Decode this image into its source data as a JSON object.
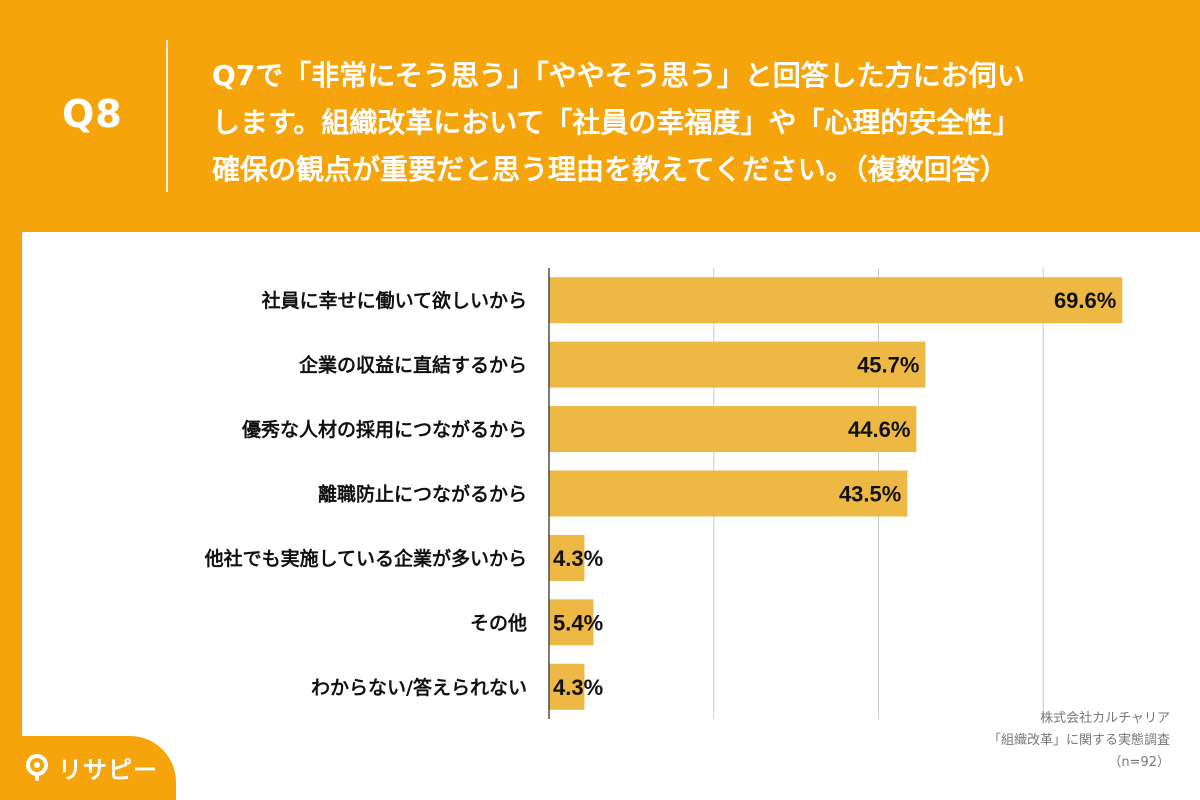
{
  "header": {
    "question_number": "Q8",
    "question_lines": [
      "Q7で「非常にそう思う」「ややそう思う」と回答した方にお伺い",
      "します。組織改革において「社員の幸福度」や「心理的安全性」",
      "確保の観点が重要だと思う理由を教えてください。（複数回答）"
    ]
  },
  "chart_data": {
    "type": "bar",
    "orientation": "horizontal",
    "categories": [
      "社員に幸せに働いて欲しいから",
      "企業の収益に直結するから",
      "優秀な人材の採用につながるから",
      "離職防止につながるから",
      "他社でも実施している企業が多いから",
      "その他",
      "わからない/答えられない"
    ],
    "values": [
      69.6,
      45.7,
      44.6,
      43.5,
      4.3,
      5.4,
      4.3
    ],
    "value_labels": [
      "69.6%",
      "45.7%",
      "44.6%",
      "43.5%",
      "4.3%",
      "5.4%",
      "4.3%"
    ],
    "xlim": [
      0,
      80
    ],
    "grid": true,
    "bar_color": "#EDB843",
    "title": "",
    "xlabel": "",
    "ylabel": ""
  },
  "source": {
    "lines": [
      "株式会社カルチャリア",
      "「組織改革」に関する実態調査",
      "（n=92）"
    ]
  },
  "logo": {
    "text": "リサピー",
    "icon": "pin-icon"
  },
  "colors": {
    "background": "#F5A40C",
    "panel": "#FFFFFF",
    "bar": "#EDB843",
    "grid": "#CCCCCC"
  }
}
